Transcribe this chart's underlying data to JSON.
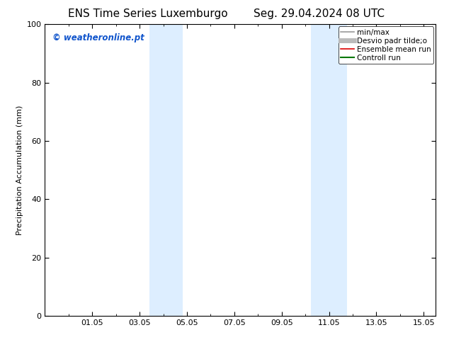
{
  "title_left": "ENS Time Series Luxemburgo",
  "title_right": "Seg. 29.04.2024 08 UTC",
  "ylabel": "Precipitation Accumulation (mm)",
  "ylim": [
    0,
    100
  ],
  "yticks": [
    0,
    20,
    40,
    60,
    80,
    100
  ],
  "xtick_labels": [
    "01.05",
    "03.05",
    "05.05",
    "07.05",
    "09.05",
    "11.05",
    "13.05",
    "15.05"
  ],
  "xtick_positions": [
    2,
    4,
    6,
    8,
    10,
    12,
    14,
    16
  ],
  "xlim": [
    0,
    16.5
  ],
  "watermark_text": "© weatheronline.pt",
  "watermark_color": "#1155cc",
  "background_color": "#ffffff",
  "plot_bg_color": "#ffffff",
  "shaded_bands": [
    {
      "x_start": 4.42,
      "x_end": 5.83,
      "color": "#ddeeff"
    },
    {
      "x_start": 11.25,
      "x_end": 12.75,
      "color": "#ddeeff"
    }
  ],
  "legend_entries": [
    {
      "label": "min/max",
      "color": "#999999",
      "lw": 1.2,
      "style": "solid"
    },
    {
      "label": "Desvio padr tilde;o",
      "color": "#bbbbbb",
      "lw": 5,
      "style": "solid"
    },
    {
      "label": "Ensemble mean run",
      "color": "#dd0000",
      "lw": 1.2,
      "style": "solid"
    },
    {
      "label": "Controll run",
      "color": "#007700",
      "lw": 1.5,
      "style": "solid"
    }
  ],
  "title_fontsize": 11,
  "axis_label_fontsize": 8,
  "tick_fontsize": 8,
  "legend_fontsize": 7.5,
  "watermark_fontsize": 8.5,
  "border_color": "#000000",
  "spine_linewidth": 0.8
}
